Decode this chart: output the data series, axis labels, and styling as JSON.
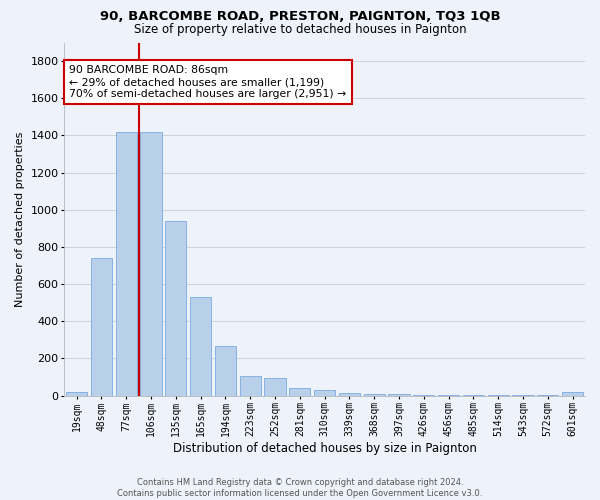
{
  "title1": "90, BARCOMBE ROAD, PRESTON, PAIGNTON, TQ3 1QB",
  "title2": "Size of property relative to detached houses in Paignton",
  "xlabel": "Distribution of detached houses by size in Paignton",
  "ylabel": "Number of detached properties",
  "footer1": "Contains HM Land Registry data © Crown copyright and database right 2024.",
  "footer2": "Contains public sector information licensed under the Open Government Licence v3.0.",
  "categories": [
    "19sqm",
    "48sqm",
    "77sqm",
    "106sqm",
    "135sqm",
    "165sqm",
    "194sqm",
    "223sqm",
    "252sqm",
    "281sqm",
    "310sqm",
    "339sqm",
    "368sqm",
    "397sqm",
    "426sqm",
    "456sqm",
    "485sqm",
    "514sqm",
    "543sqm",
    "572sqm",
    "601sqm"
  ],
  "values": [
    22,
    742,
    1421,
    1421,
    937,
    532,
    265,
    105,
    93,
    40,
    28,
    15,
    10,
    10,
    5,
    5,
    5,
    5,
    5,
    5,
    18
  ],
  "bar_color": "#b8d0ea",
  "bar_edge_color": "#7aabe0",
  "vline_color": "#cc0000",
  "vline_x_index": 2.5,
  "annotation_text": "90 BARCOMBE ROAD: 86sqm\n← 29% of detached houses are smaller (1,199)\n70% of semi-detached houses are larger (2,951) →",
  "annotation_box_color": "white",
  "annotation_box_edge_color": "#cc0000",
  "ylim": [
    0,
    1900
  ],
  "yticks": [
    0,
    200,
    400,
    600,
    800,
    1000,
    1200,
    1400,
    1600,
    1800
  ],
  "grid_color": "#cccccc",
  "bg_color": "#eef2fa"
}
